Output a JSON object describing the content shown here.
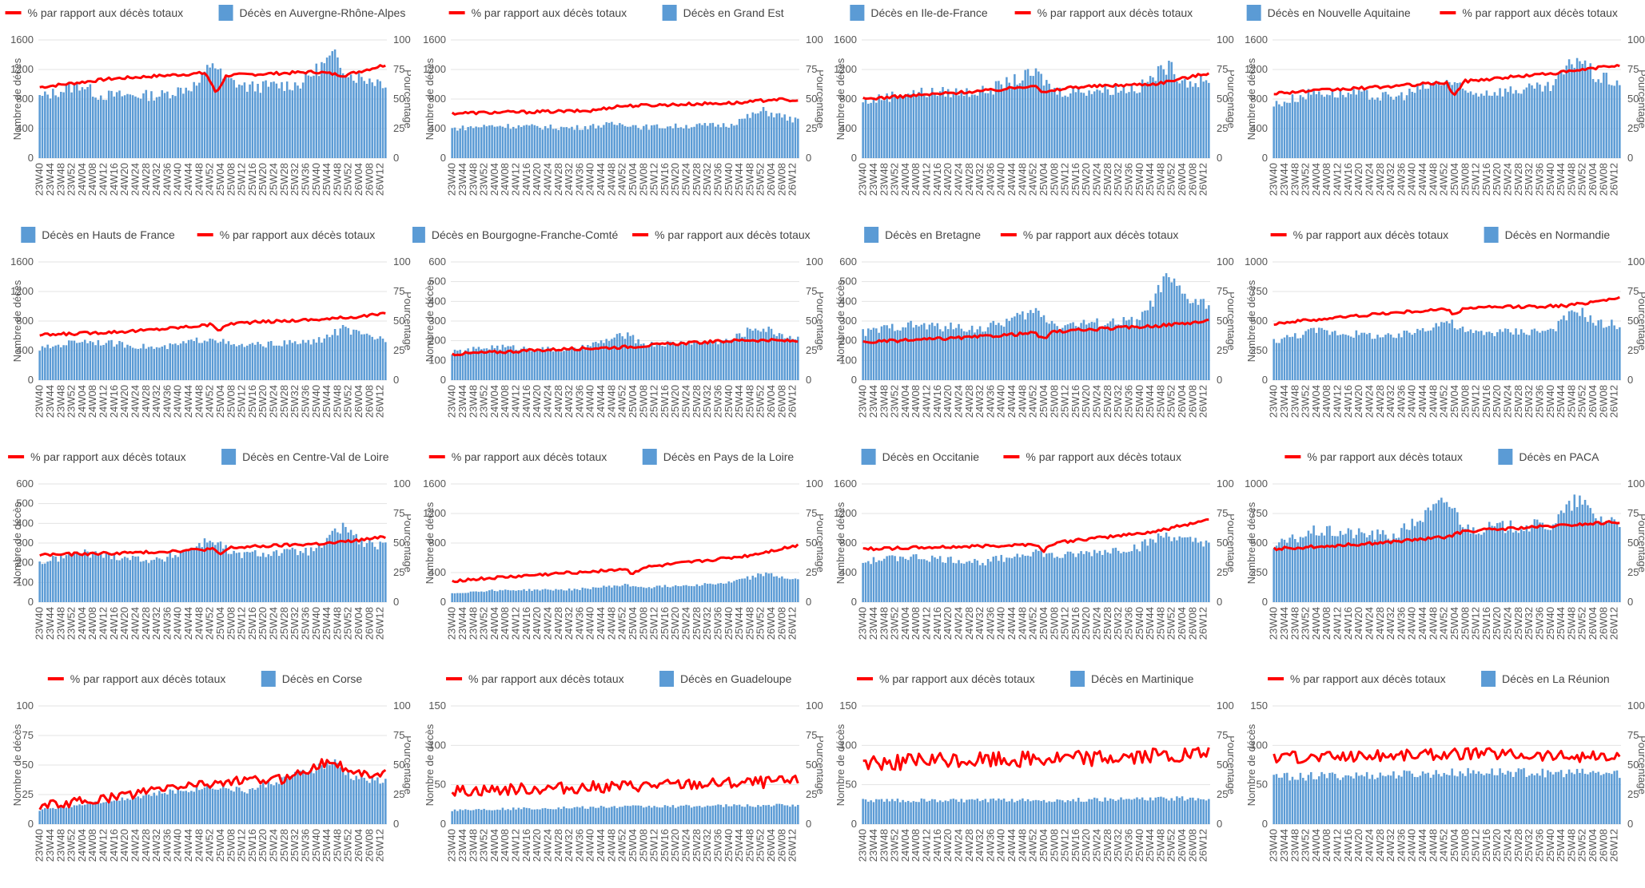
{
  "colors": {
    "bar": "#5b9bd5",
    "line": "#ff0000",
    "grid": "#e3e3e3",
    "text": "#555555"
  },
  "y_axis_left_label": "Nombre de décès",
  "y_axis_right_label": "Pourcentage",
  "line_series_name": "% par rapport aux décès totaux",
  "right_axis_ticks": [
    "0",
    "25",
    "50",
    "75",
    "100"
  ],
  "x_tick_labels": [
    "23W40",
    "23W44",
    "23W48",
    "23W52",
    "24W04",
    "24W08",
    "24W12",
    "24W16",
    "24W20",
    "24W24",
    "24W28",
    "24W32",
    "24W36",
    "24W40",
    "24W44",
    "24W48",
    "24W52",
    "25W04",
    "25W08",
    "25W12",
    "25W16",
    "25W20",
    "25W24",
    "25W28",
    "25W32",
    "25W36",
    "25W40",
    "25W44",
    "25W48",
    "25W52",
    "26W04",
    "26W08",
    "26W12"
  ],
  "chart_data": [
    {
      "type": "bar+line",
      "region": "Auvergne-Rhône-Alpes",
      "bar_series": "Décès en Auvergne-Rhône-Alpes",
      "legend_order": [
        "line",
        "bar"
      ],
      "ylim": [
        0,
        1600
      ],
      "yticks": [
        "0",
        "400",
        "800",
        "1200",
        "1600"
      ],
      "bar_profile": [
        [
          0,
          820
        ],
        [
          0.12,
          1000
        ],
        [
          0.17,
          850
        ],
        [
          0.35,
          850
        ],
        [
          0.46,
          1000
        ],
        [
          0.5,
          1320
        ],
        [
          0.53,
          1080
        ],
        [
          0.6,
          960
        ],
        [
          0.75,
          1000
        ],
        [
          0.85,
          1380
        ],
        [
          0.9,
          1120
        ],
        [
          1,
          1020
        ]
      ],
      "line_profile": [
        [
          0,
          60
        ],
        [
          0.2,
          67
        ],
        [
          0.48,
          72
        ],
        [
          0.51,
          55
        ],
        [
          0.54,
          70
        ],
        [
          0.8,
          73
        ],
        [
          0.88,
          70
        ],
        [
          1,
          79
        ]
      ]
    },
    {
      "type": "bar+line",
      "region": "Grand Est",
      "bar_series": "Décès en Grand Est",
      "legend_order": [
        "line",
        "bar"
      ],
      "ylim": [
        0,
        1600
      ],
      "yticks": [
        "0",
        "400",
        "800",
        "1200",
        "1600"
      ],
      "bar_profile": [
        [
          0,
          400
        ],
        [
          0.12,
          440
        ],
        [
          0.35,
          410
        ],
        [
          0.5,
          470
        ],
        [
          0.55,
          420
        ],
        [
          0.8,
          450
        ],
        [
          0.9,
          640
        ],
        [
          1,
          500
        ]
      ],
      "line_profile": [
        [
          0,
          38
        ],
        [
          0.4,
          40
        ],
        [
          0.48,
          44
        ],
        [
          0.6,
          45
        ],
        [
          0.85,
          47
        ],
        [
          0.93,
          50
        ],
        [
          1,
          48
        ]
      ]
    },
    {
      "type": "bar+line",
      "region": "Ile-de-France",
      "bar_series": "Décès en Ile-de-France",
      "legend_order": [
        "bar",
        "line"
      ],
      "ylim": [
        0,
        1600
      ],
      "yticks": [
        "0",
        "400",
        "800",
        "1200",
        "1600"
      ],
      "bar_profile": [
        [
          0,
          760
        ],
        [
          0.12,
          880
        ],
        [
          0.35,
          900
        ],
        [
          0.5,
          1150
        ],
        [
          0.56,
          900
        ],
        [
          0.8,
          950
        ],
        [
          0.88,
          1250
        ],
        [
          0.93,
          1050
        ],
        [
          1,
          1000
        ]
      ],
      "line_profile": [
        [
          0,
          50
        ],
        [
          0.4,
          58
        ],
        [
          0.5,
          62
        ],
        [
          0.52,
          55
        ],
        [
          0.6,
          60
        ],
        [
          0.85,
          63
        ],
        [
          1,
          72
        ]
      ]
    },
    {
      "type": "bar+line",
      "region": "Nouvelle Aquitaine",
      "bar_series": "Décès en Nouvelle Aquitaine",
      "legend_order": [
        "bar",
        "line"
      ],
      "ylim": [
        0,
        1600
      ],
      "yticks": [
        "0",
        "400",
        "800",
        "1200",
        "1600"
      ],
      "bar_profile": [
        [
          0,
          720
        ],
        [
          0.12,
          900
        ],
        [
          0.35,
          820
        ],
        [
          0.5,
          1050
        ],
        [
          0.56,
          880
        ],
        [
          0.8,
          950
        ],
        [
          0.88,
          1380
        ],
        [
          0.93,
          1100
        ],
        [
          1,
          1020
        ]
      ],
      "line_profile": [
        [
          0,
          55
        ],
        [
          0.3,
          60
        ],
        [
          0.5,
          64
        ],
        [
          0.52,
          52
        ],
        [
          0.55,
          65
        ],
        [
          0.85,
          73
        ],
        [
          1,
          79
        ]
      ]
    },
    {
      "type": "bar+line",
      "region": "Hauts de France",
      "bar_series": "Décès en Hauts de France",
      "legend_order": [
        "bar",
        "line"
      ],
      "ylim": [
        0,
        1600
      ],
      "yticks": [
        "0",
        "400",
        "800",
        "1200",
        "1600"
      ],
      "bar_profile": [
        [
          0,
          420
        ],
        [
          0.12,
          540
        ],
        [
          0.35,
          430
        ],
        [
          0.5,
          580
        ],
        [
          0.56,
          460
        ],
        [
          0.8,
          520
        ],
        [
          0.88,
          700
        ],
        [
          0.93,
          600
        ],
        [
          1,
          560
        ]
      ],
      "line_profile": [
        [
          0,
          38
        ],
        [
          0.3,
          42
        ],
        [
          0.5,
          47
        ],
        [
          0.52,
          42
        ],
        [
          0.55,
          48
        ],
        [
          0.85,
          52
        ],
        [
          1,
          56
        ]
      ]
    },
    {
      "type": "bar+line",
      "region": "Bourgogne-Franche-Comté",
      "bar_series": "Décès en Bourgogne-Franche-Comté",
      "legend_order": [
        "bar",
        "line"
      ],
      "ylim": [
        0,
        600
      ],
      "yticks": [
        "0",
        "100",
        "200",
        "300",
        "400",
        "500",
        "600"
      ],
      "bar_profile": [
        [
          0,
          140
        ],
        [
          0.12,
          170
        ],
        [
          0.35,
          150
        ],
        [
          0.5,
          230
        ],
        [
          0.56,
          180
        ],
        [
          0.8,
          200
        ],
        [
          0.88,
          270
        ],
        [
          1,
          210
        ]
      ],
      "line_profile": [
        [
          0,
          22
        ],
        [
          0.3,
          26
        ],
        [
          0.5,
          28
        ],
        [
          0.6,
          30
        ],
        [
          0.85,
          34
        ],
        [
          1,
          33
        ]
      ]
    },
    {
      "type": "bar+line",
      "region": "Bretagne",
      "bar_series": "Décès en Bretagne",
      "legend_order": [
        "bar",
        "line"
      ],
      "ylim": [
        0,
        600
      ],
      "yticks": [
        "0",
        "100",
        "200",
        "300",
        "400",
        "500",
        "600"
      ],
      "bar_profile": [
        [
          0,
          240
        ],
        [
          0.12,
          280
        ],
        [
          0.35,
          260
        ],
        [
          0.5,
          350
        ],
        [
          0.56,
          280
        ],
        [
          0.8,
          300
        ],
        [
          0.88,
          520
        ],
        [
          0.93,
          420
        ],
        [
          1,
          380
        ]
      ],
      "line_profile": [
        [
          0,
          32
        ],
        [
          0.3,
          36
        ],
        [
          0.5,
          40
        ],
        [
          0.52,
          34
        ],
        [
          0.55,
          41
        ],
        [
          0.85,
          46
        ],
        [
          1,
          50
        ]
      ]
    },
    {
      "type": "bar+line",
      "region": "Normandie",
      "bar_series": "Décès en Normandie",
      "legend_order": [
        "line",
        "bar"
      ],
      "ylim": [
        0,
        1000
      ],
      "yticks": [
        "0",
        "250",
        "500",
        "750",
        "1000"
      ],
      "bar_profile": [
        [
          0,
          330
        ],
        [
          0.12,
          420
        ],
        [
          0.35,
          360
        ],
        [
          0.5,
          500
        ],
        [
          0.56,
          400
        ],
        [
          0.8,
          420
        ],
        [
          0.88,
          600
        ],
        [
          0.93,
          480
        ],
        [
          1,
          470
        ]
      ],
      "line_profile": [
        [
          0,
          48
        ],
        [
          0.3,
          56
        ],
        [
          0.5,
          60
        ],
        [
          0.52,
          55
        ],
        [
          0.55,
          61
        ],
        [
          0.85,
          63
        ],
        [
          1,
          70
        ]
      ]
    },
    {
      "type": "bar+line",
      "region": "Centre-Val de Loire",
      "bar_series": "Décès en Centre-Val de Loire",
      "legend_order": [
        "line",
        "bar"
      ],
      "ylim": [
        0,
        600
      ],
      "yticks": [
        "0",
        "100",
        "200",
        "300",
        "400",
        "500",
        "600"
      ],
      "bar_profile": [
        [
          0,
          200
        ],
        [
          0.12,
          250
        ],
        [
          0.35,
          210
        ],
        [
          0.5,
          320
        ],
        [
          0.56,
          240
        ],
        [
          0.8,
          260
        ],
        [
          0.88,
          390
        ],
        [
          0.93,
          300
        ],
        [
          1,
          280
        ]
      ],
      "line_profile": [
        [
          0,
          40
        ],
        [
          0.3,
          42
        ],
        [
          0.5,
          45
        ],
        [
          0.52,
          40
        ],
        [
          0.55,
          46
        ],
        [
          0.85,
          50
        ],
        [
          1,
          55
        ]
      ]
    },
    {
      "type": "bar+line",
      "region": "Pays de la Loire",
      "bar_series": "Décès en Pays de la Loire",
      "legend_order": [
        "line",
        "bar"
      ],
      "ylim": [
        0,
        1600
      ],
      "yticks": [
        "0",
        "400",
        "800",
        "1200",
        "1600"
      ],
      "bar_profile": [
        [
          0,
          120
        ],
        [
          0.12,
          160
        ],
        [
          0.35,
          170
        ],
        [
          0.5,
          230
        ],
        [
          0.56,
          200
        ],
        [
          0.8,
          260
        ],
        [
          0.9,
          380
        ],
        [
          1,
          300
        ]
      ],
      "line_profile": [
        [
          0,
          18
        ],
        [
          0.3,
          24
        ],
        [
          0.5,
          28
        ],
        [
          0.52,
          24
        ],
        [
          0.55,
          29
        ],
        [
          0.85,
          39
        ],
        [
          1,
          48
        ]
      ]
    },
    {
      "type": "bar+line",
      "region": "Occitanie",
      "bar_series": "Décès en Occitanie",
      "legend_order": [
        "bar",
        "line"
      ],
      "ylim": [
        0,
        1600
      ],
      "yticks": [
        "0",
        "400",
        "800",
        "1200",
        "1600"
      ],
      "bar_profile": [
        [
          0,
          540
        ],
        [
          0.12,
          620
        ],
        [
          0.35,
          540
        ],
        [
          0.5,
          690
        ],
        [
          0.56,
          610
        ],
        [
          0.8,
          750
        ],
        [
          0.88,
          920
        ],
        [
          0.93,
          820
        ],
        [
          1,
          820
        ]
      ],
      "line_profile": [
        [
          0,
          45
        ],
        [
          0.3,
          47
        ],
        [
          0.5,
          49
        ],
        [
          0.52,
          43
        ],
        [
          0.55,
          50
        ],
        [
          0.85,
          60
        ],
        [
          1,
          70
        ]
      ]
    },
    {
      "type": "bar+line",
      "region": "PACA",
      "bar_series": "Décès en PACA",
      "legend_order": [
        "line",
        "bar"
      ],
      "ylim": [
        0,
        1000
      ],
      "yticks": [
        "0",
        "250",
        "500",
        "750",
        "1000"
      ],
      "bar_profile": [
        [
          0,
          470
        ],
        [
          0.12,
          600
        ],
        [
          0.35,
          560
        ],
        [
          0.5,
          860
        ],
        [
          0.56,
          620
        ],
        [
          0.8,
          650
        ],
        [
          0.88,
          870
        ],
        [
          0.93,
          720
        ],
        [
          1,
          680
        ]
      ],
      "line_profile": [
        [
          0,
          45
        ],
        [
          0.3,
          50
        ],
        [
          0.5,
          55
        ],
        [
          0.55,
          60
        ],
        [
          0.85,
          65
        ],
        [
          1,
          68
        ]
      ]
    },
    {
      "type": "bar+line",
      "region": "Corse",
      "bar_series": "Décès en Corse",
      "legend_order": [
        "line",
        "bar"
      ],
      "ylim": [
        0,
        100
      ],
      "yticks": [
        "0",
        "25",
        "50",
        "75",
        "100"
      ],
      "bar_profile": [
        [
          0,
          12
        ],
        [
          0.2,
          20
        ],
        [
          0.4,
          28
        ],
        [
          0.5,
          32
        ],
        [
          0.6,
          28
        ],
        [
          0.85,
          52
        ],
        [
          0.9,
          40
        ],
        [
          1,
          36
        ]
      ],
      "line_profile": [
        [
          0,
          15
        ],
        [
          0.2,
          22
        ],
        [
          0.4,
          32
        ],
        [
          0.5,
          35
        ],
        [
          0.7,
          38
        ],
        [
          0.85,
          55
        ],
        [
          0.9,
          42
        ],
        [
          1,
          44
        ]
      ],
      "line_noise": 8
    },
    {
      "type": "bar+line",
      "region": "Guadeloupe",
      "bar_series": "Décès en Guadeloupe",
      "legend_order": [
        "line",
        "bar"
      ],
      "ylim": [
        0,
        150
      ],
      "yticks": [
        "0",
        "50",
        "100",
        "150"
      ],
      "bar_profile": [
        [
          0,
          18
        ],
        [
          0.5,
          22
        ],
        [
          1,
          24
        ]
      ],
      "line_profile": [
        [
          0,
          28
        ],
        [
          0.5,
          32
        ],
        [
          1,
          36
        ]
      ],
      "line_noise": 10
    },
    {
      "type": "bar+line",
      "region": "Martinique",
      "bar_series": "Décès en Martinique",
      "legend_order": [
        "line",
        "bar"
      ],
      "ylim": [
        0,
        150
      ],
      "yticks": [
        "0",
        "50",
        "100",
        "150"
      ],
      "bar_profile": [
        [
          0,
          30
        ],
        [
          0.5,
          30
        ],
        [
          1,
          33
        ]
      ],
      "line_profile": [
        [
          0,
          52
        ],
        [
          0.5,
          55
        ],
        [
          1,
          58
        ]
      ],
      "line_noise": 14
    },
    {
      "type": "bar+line",
      "region": "La Réunion",
      "bar_series": "Décès en La Réunion",
      "legend_order": [
        "line",
        "bar"
      ],
      "ylim": [
        0,
        150
      ],
      "yticks": [
        "0",
        "50",
        "100",
        "150"
      ],
      "bar_profile": [
        [
          0,
          60
        ],
        [
          0.3,
          62
        ],
        [
          0.6,
          66
        ],
        [
          1,
          64
        ]
      ],
      "line_profile": [
        [
          0,
          56
        ],
        [
          0.3,
          58
        ],
        [
          0.6,
          60
        ],
        [
          1,
          56
        ]
      ],
      "line_noise": 10
    }
  ]
}
